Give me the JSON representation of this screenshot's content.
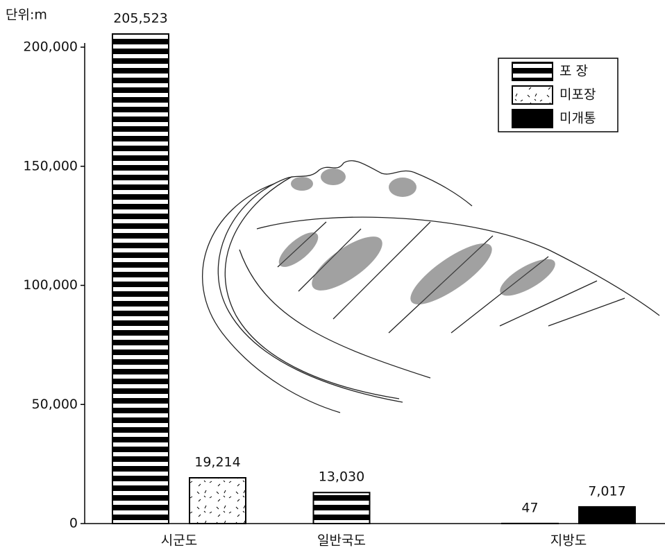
{
  "chart_data": {
    "type": "bar",
    "unit_label": "단위:m",
    "categories": [
      "시군도",
      "일반국도",
      "지방도"
    ],
    "series": [
      {
        "name": "포 장",
        "color": "#000000",
        "values": [
          205523,
          13030,
          47
        ],
        "value_labels": [
          "205,523",
          "13,030",
          "47"
        ]
      },
      {
        "name": "미포장",
        "color": "#ffffff",
        "values": [
          19214,
          null,
          null
        ],
        "value_labels": [
          "19,214",
          null,
          null
        ]
      },
      {
        "name": "미개통",
        "color": "#000000",
        "values": [
          null,
          null,
          7017
        ],
        "value_labels": [
          null,
          null,
          "7,017"
        ]
      }
    ],
    "ylim": [
      0,
      200000
    ],
    "yticks": [
      0,
      {
        "value": 50000,
        "label": "50,000"
      },
      {
        "value": 100000,
        "label": "100,000"
      },
      {
        "value": 150000,
        "label": "150,000"
      },
      {
        "value": 200000,
        "label": "200,000"
      }
    ],
    "legend": "upper right"
  }
}
